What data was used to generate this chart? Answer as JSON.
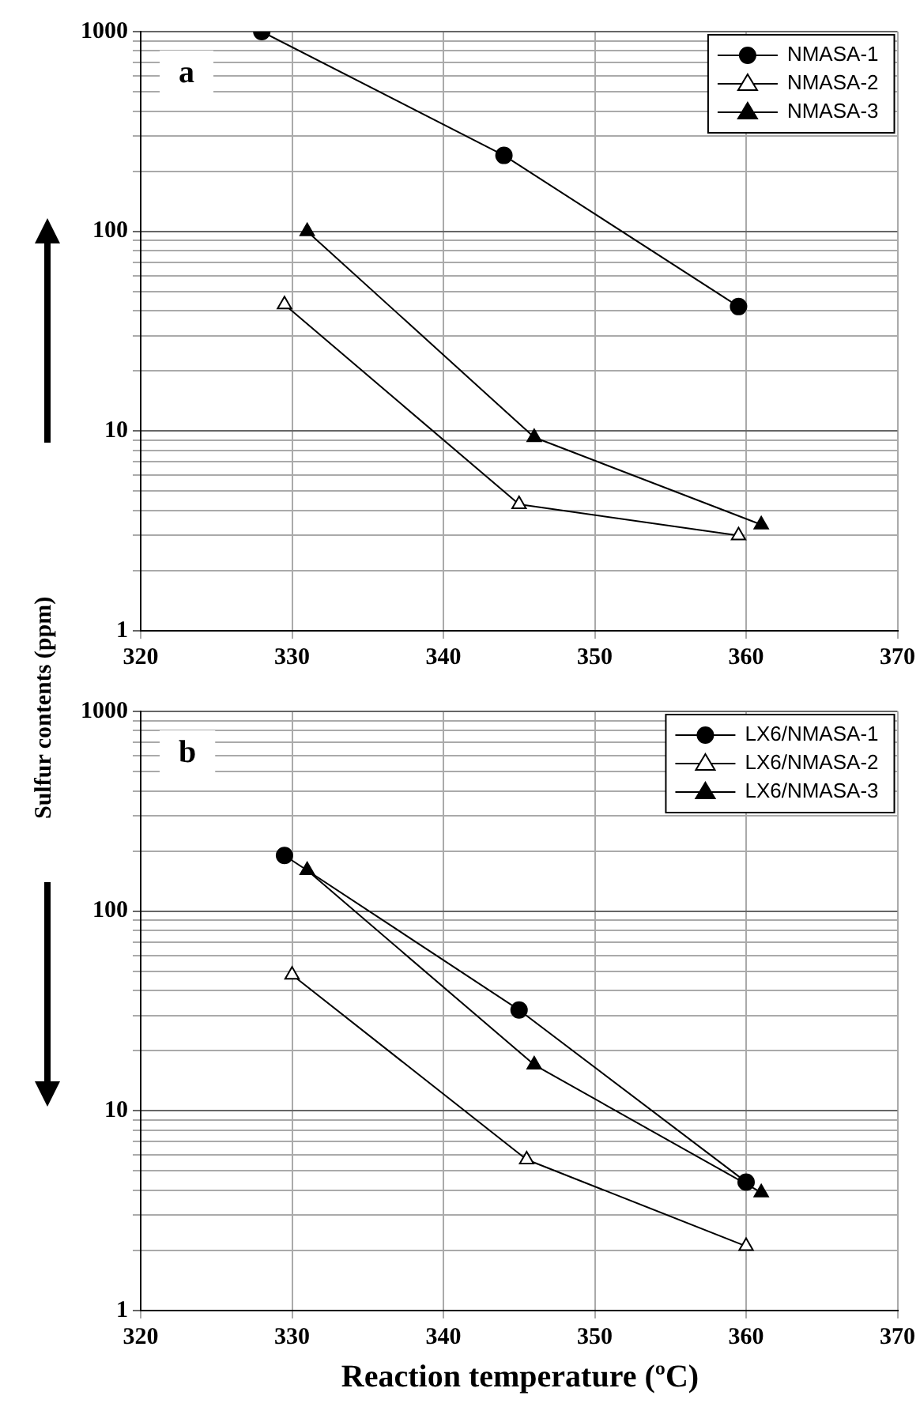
{
  "chart_data": [
    {
      "type": "line",
      "ylabel": "Sulfur contents (ppm)",
      "annotations": [
        "a"
      ],
      "log": "y",
      "grid": true,
      "legend": "top right",
      "line_style": "solid",
      "xlim": [
        320,
        370
      ],
      "xticks": [
        320,
        330,
        340,
        350,
        360,
        370
      ],
      "ylim": [
        1,
        1000
      ],
      "yticks": [
        1,
        {
          "value": 2,
          "label": null
        },
        {
          "value": 3,
          "label": null
        },
        {
          "value": 4,
          "label": null
        },
        {
          "value": 5,
          "label": null
        },
        {
          "value": 6,
          "label": null
        },
        {
          "value": 7,
          "label": null
        },
        {
          "value": 8,
          "label": null
        },
        {
          "value": 9,
          "label": null
        },
        10,
        {
          "value": 20,
          "label": null
        },
        {
          "value": 30,
          "label": null
        },
        {
          "value": 40,
          "label": null
        },
        {
          "value": 50,
          "label": null
        },
        {
          "value": 60,
          "label": null
        },
        {
          "value": 70,
          "label": null
        },
        {
          "value": 80,
          "label": null
        },
        {
          "value": 90,
          "label": null
        },
        100,
        {
          "value": 200,
          "label": null
        },
        {
          "value": 300,
          "label": null
        },
        {
          "value": 400,
          "label": null
        },
        {
          "value": 500,
          "label": null
        },
        {
          "value": 600,
          "label": null
        },
        {
          "value": 700,
          "label": null
        },
        {
          "value": 800,
          "label": null
        },
        {
          "value": 900,
          "label": null
        },
        1000
      ],
      "series": [
        {
          "name": "NMASA-1",
          "color": "#000000",
          "marker": "circle",
          "x": [
            328,
            344,
            359.5
          ],
          "values": [
            1000,
            240,
            42
          ]
        },
        {
          "name": "NMASA-2",
          "color": "#000000",
          "marker": "triangle",
          "colors": [
            "#ffffff",
            "#ffffff",
            "#ffffff"
          ],
          "x": [
            329.5,
            345,
            359.5
          ],
          "values": [
            43,
            4.3,
            3
          ]
        },
        {
          "name": "NMASA-3",
          "color": "#000000",
          "marker": "triangle",
          "x": [
            331,
            346,
            361
          ],
          "values": [
            100,
            9.3,
            3.4
          ]
        }
      ]
    },
    {
      "type": "line",
      "xlabel": "Reaction temperature (ºC)",
      "annotations": [
        "b"
      ],
      "log": "y",
      "grid": true,
      "legend": "top right",
      "line_style": "solid",
      "xlim": [
        320,
        370
      ],
      "xticks": [
        320,
        330,
        340,
        350,
        360,
        370
      ],
      "ylim": [
        1,
        1000
      ],
      "yticks": [
        1,
        {
          "value": 2,
          "label": null
        },
        {
          "value": 3,
          "label": null
        },
        {
          "value": 4,
          "label": null
        },
        {
          "value": 5,
          "label": null
        },
        {
          "value": 6,
          "label": null
        },
        {
          "value": 7,
          "label": null
        },
        {
          "value": 8,
          "label": null
        },
        {
          "value": 9,
          "label": null
        },
        10,
        {
          "value": 20,
          "label": null
        },
        {
          "value": 30,
          "label": null
        },
        {
          "value": 40,
          "label": null
        },
        {
          "value": 50,
          "label": null
        },
        {
          "value": 60,
          "label": null
        },
        {
          "value": 70,
          "label": null
        },
        {
          "value": 80,
          "label": null
        },
        {
          "value": 90,
          "label": null
        },
        100,
        {
          "value": 200,
          "label": null
        },
        {
          "value": 300,
          "label": null
        },
        {
          "value": 400,
          "label": null
        },
        {
          "value": 500,
          "label": null
        },
        {
          "value": 600,
          "label": null
        },
        {
          "value": 700,
          "label": null
        },
        {
          "value": 800,
          "label": null
        },
        {
          "value": 900,
          "label": null
        },
        1000
      ],
      "series": [
        {
          "name": "LX6/NMASA-1",
          "color": "#000000",
          "marker": "circle",
          "x": [
            329.5,
            345,
            360
          ],
          "values": [
            190,
            32,
            4.4
          ]
        },
        {
          "name": "LX6/NMASA-2",
          "color": "#000000",
          "marker": "triangle",
          "colors": [
            "#ffffff",
            "#ffffff",
            "#ffffff"
          ],
          "x": [
            330,
            345.5,
            360
          ],
          "values": [
            48,
            5.7,
            2.1
          ]
        },
        {
          "name": "LX6/NMASA-3",
          "color": "#000000",
          "marker": "triangle",
          "x": [
            331,
            346,
            361
          ],
          "values": [
            160,
            17,
            3.9
          ]
        }
      ]
    }
  ]
}
